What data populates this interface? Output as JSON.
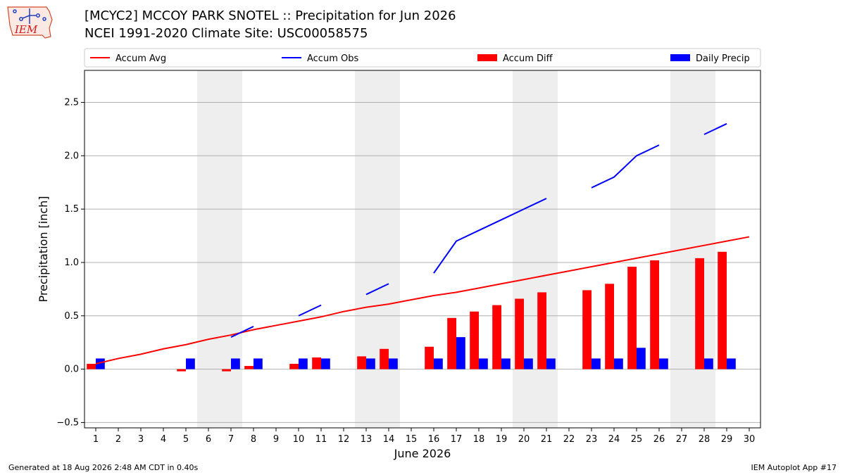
{
  "logo": {
    "text": "IEM"
  },
  "header": {
    "title": "[MCYC2] MCCOY PARK SNOTEL :: Precipitation for Jun 2026",
    "subtitle": "NCEI 1991-2020 Climate Site: USC00058575"
  },
  "footer": {
    "generated": "Generated at 18 Aug 2026 2:48 AM CDT in 0.40s",
    "app": "IEM Autoplot App #17"
  },
  "colors": {
    "avg": "#ff0000",
    "obs": "#0000ff",
    "diff": "#ff0000",
    "daily": "#0000ff",
    "weekend": "#eeeeee",
    "grid": "#b0b0b0"
  },
  "chart_data": {
    "type": "bar",
    "xlabel": "June 2026",
    "ylabel": "Precipitation [inch]",
    "xlim": [
      0.5,
      30.5
    ],
    "ylim": [
      -0.55,
      2.8
    ],
    "yticks": [
      -0.5,
      0.0,
      0.5,
      1.0,
      1.5,
      2.0,
      2.5
    ],
    "ytick_labels": [
      "−0.5",
      "0.0",
      "0.5",
      "1.0",
      "1.5",
      "2.0",
      "2.5"
    ],
    "days": [
      1,
      2,
      3,
      4,
      5,
      6,
      7,
      8,
      9,
      10,
      11,
      12,
      13,
      14,
      15,
      16,
      17,
      18,
      19,
      20,
      21,
      22,
      23,
      24,
      25,
      26,
      27,
      28,
      29,
      30
    ],
    "shaded_days": [
      [
        6,
        7
      ],
      [
        13,
        14
      ],
      [
        20,
        21
      ],
      [
        27,
        28
      ]
    ],
    "grid": "horizontal",
    "legend": {
      "placement": "top",
      "entries": [
        {
          "label": "Accum Avg",
          "kind": "line",
          "color": "#ff0000"
        },
        {
          "label": "Accum Obs",
          "kind": "line",
          "color": "#0000ff"
        },
        {
          "label": "Accum Diff",
          "kind": "bar",
          "color": "#ff0000"
        },
        {
          "label": "Daily Precip",
          "kind": "bar",
          "color": "#0000ff"
        }
      ]
    },
    "series": [
      {
        "name": "Accum Avg",
        "kind": "line",
        "color": "#ff0000",
        "values": [
          0.05,
          0.1,
          0.14,
          0.19,
          0.23,
          0.28,
          0.32,
          0.37,
          0.41,
          0.45,
          0.49,
          0.54,
          0.58,
          0.61,
          0.65,
          0.69,
          0.72,
          0.76,
          0.8,
          0.84,
          0.88,
          0.92,
          0.96,
          1.0,
          1.04,
          1.08,
          1.12,
          1.16,
          1.2,
          1.24
        ]
      },
      {
        "name": "Accum Obs",
        "kind": "line",
        "color": "#0000ff",
        "values": [
          null,
          null,
          null,
          null,
          null,
          null,
          0.3,
          0.4,
          null,
          0.5,
          0.6,
          null,
          0.7,
          0.8,
          null,
          0.9,
          1.2,
          1.3,
          1.4,
          1.5,
          1.6,
          null,
          1.7,
          1.8,
          2.0,
          2.1,
          null,
          2.2,
          2.3,
          null
        ]
      },
      {
        "name": "Accum Diff",
        "kind": "bar",
        "color": "#ff0000",
        "values": [
          0.05,
          null,
          null,
          null,
          -0.02,
          null,
          -0.02,
          0.03,
          null,
          0.05,
          0.11,
          null,
          0.12,
          0.19,
          null,
          0.21,
          0.48,
          0.54,
          0.6,
          0.66,
          0.72,
          null,
          0.74,
          0.8,
          0.96,
          1.02,
          null,
          1.04,
          1.1,
          null
        ]
      },
      {
        "name": "Daily Precip",
        "kind": "bar",
        "color": "#0000ff",
        "values": [
          0.1,
          null,
          null,
          null,
          0.1,
          null,
          0.1,
          0.1,
          null,
          0.1,
          0.1,
          null,
          0.1,
          0.1,
          null,
          0.1,
          0.3,
          0.1,
          0.1,
          0.1,
          0.1,
          null,
          0.1,
          0.1,
          0.2,
          0.1,
          null,
          0.1,
          0.1,
          null
        ]
      }
    ]
  }
}
